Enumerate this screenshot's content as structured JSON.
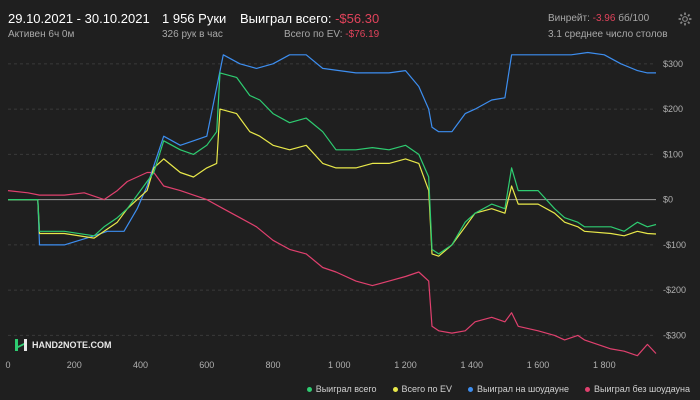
{
  "header": {
    "date_range": "29.10.2021 - 30.10.2021",
    "status": "Активен 6ч 0м",
    "hands": "1 956 Руки",
    "hands_per_hour": "326 рук в час",
    "won_total_label": "Выиграл всего:",
    "won_total_value": "-$56.30",
    "ev_label": "Всего по EV:",
    "ev_value": "-$76.19",
    "winrate_label": "Винрейт:",
    "winrate_value": "-3.96",
    "winrate_unit": "бб/100",
    "avg_tables": "3.1 среднее число столов"
  },
  "logo": {
    "text": "HAND2NOTE.COM"
  },
  "colors": {
    "bg": "#1f1f1f",
    "green": "#2ecc71",
    "yellow": "#e8e84a",
    "blue": "#3d8ef0",
    "pink": "#e0406e"
  },
  "chart_data": {
    "type": "line",
    "xlim": [
      0,
      1956
    ],
    "ylim": [
      -350,
      335
    ],
    "x_ticks": [
      0,
      200,
      400,
      600,
      800,
      1000,
      1200,
      1400,
      1600,
      1800
    ],
    "x_tick_labels": [
      "0",
      "200",
      "400",
      "600",
      "800",
      "1 000",
      "1 200",
      "1 400",
      "1 600",
      "1 800"
    ],
    "y_ticks": [
      -300,
      -200,
      -100,
      0,
      100,
      200,
      300
    ],
    "y_tick_labels": [
      "-$300",
      "-$200",
      "-$100",
      "$0",
      "$100",
      "$200",
      "$300"
    ],
    "grid": "horizontal dashed",
    "legend_position": "bottom-right",
    "series": [
      {
        "name": "Выиграл всего",
        "color": "#2ecc71",
        "points": [
          [
            0,
            0
          ],
          [
            90,
            0
          ],
          [
            95,
            -70
          ],
          [
            170,
            -70
          ],
          [
            260,
            -80
          ],
          [
            290,
            -60
          ],
          [
            330,
            -40
          ],
          [
            360,
            -20
          ],
          [
            390,
            10
          ],
          [
            420,
            40
          ],
          [
            440,
            60
          ],
          [
            470,
            130
          ],
          [
            520,
            110
          ],
          [
            560,
            100
          ],
          [
            600,
            120
          ],
          [
            630,
            150
          ],
          [
            640,
            280
          ],
          [
            690,
            270
          ],
          [
            730,
            230
          ],
          [
            760,
            220
          ],
          [
            800,
            190
          ],
          [
            850,
            170
          ],
          [
            900,
            180
          ],
          [
            950,
            150
          ],
          [
            990,
            110
          ],
          [
            1050,
            110
          ],
          [
            1100,
            115
          ],
          [
            1150,
            110
          ],
          [
            1200,
            120
          ],
          [
            1240,
            100
          ],
          [
            1270,
            50
          ],
          [
            1280,
            -110
          ],
          [
            1300,
            -120
          ],
          [
            1340,
            -100
          ],
          [
            1380,
            -50
          ],
          [
            1410,
            -30
          ],
          [
            1460,
            -10
          ],
          [
            1500,
            -20
          ],
          [
            1520,
            70
          ],
          [
            1540,
            20
          ],
          [
            1600,
            20
          ],
          [
            1650,
            -20
          ],
          [
            1680,
            -40
          ],
          [
            1720,
            -50
          ],
          [
            1740,
            -60
          ],
          [
            1820,
            -60
          ],
          [
            1860,
            -70
          ],
          [
            1900,
            -50
          ],
          [
            1930,
            -60
          ],
          [
            1956,
            -55
          ]
        ]
      },
      {
        "name": "Всего по EV",
        "color": "#e8e84a",
        "points": [
          [
            0,
            0
          ],
          [
            90,
            0
          ],
          [
            95,
            -75
          ],
          [
            170,
            -75
          ],
          [
            260,
            -85
          ],
          [
            290,
            -70
          ],
          [
            330,
            -50
          ],
          [
            360,
            -20
          ],
          [
            390,
            0
          ],
          [
            420,
            20
          ],
          [
            440,
            70
          ],
          [
            470,
            90
          ],
          [
            520,
            60
          ],
          [
            560,
            50
          ],
          [
            600,
            70
          ],
          [
            630,
            80
          ],
          [
            640,
            200
          ],
          [
            690,
            190
          ],
          [
            730,
            150
          ],
          [
            760,
            140
          ],
          [
            800,
            120
          ],
          [
            850,
            110
          ],
          [
            900,
            120
          ],
          [
            950,
            80
          ],
          [
            990,
            70
          ],
          [
            1050,
            70
          ],
          [
            1100,
            80
          ],
          [
            1150,
            80
          ],
          [
            1200,
            90
          ],
          [
            1240,
            80
          ],
          [
            1270,
            20
          ],
          [
            1280,
            -120
          ],
          [
            1300,
            -125
          ],
          [
            1340,
            -100
          ],
          [
            1380,
            -60
          ],
          [
            1410,
            -30
          ],
          [
            1460,
            -20
          ],
          [
            1500,
            -30
          ],
          [
            1520,
            30
          ],
          [
            1540,
            -10
          ],
          [
            1600,
            -10
          ],
          [
            1650,
            -30
          ],
          [
            1680,
            -50
          ],
          [
            1720,
            -60
          ],
          [
            1740,
            -70
          ],
          [
            1820,
            -75
          ],
          [
            1860,
            -80
          ],
          [
            1900,
            -70
          ],
          [
            1930,
            -75
          ],
          [
            1956,
            -76
          ]
        ]
      },
      {
        "name": "Выиграл на шоудауне",
        "color": "#3d8ef0",
        "points": [
          [
            0,
            0
          ],
          [
            90,
            0
          ],
          [
            95,
            -100
          ],
          [
            170,
            -100
          ],
          [
            260,
            -80
          ],
          [
            300,
            -70
          ],
          [
            350,
            -70
          ],
          [
            390,
            -20
          ],
          [
            420,
            30
          ],
          [
            470,
            140
          ],
          [
            520,
            120
          ],
          [
            560,
            130
          ],
          [
            600,
            140
          ],
          [
            650,
            320
          ],
          [
            700,
            300
          ],
          [
            750,
            290
          ],
          [
            800,
            300
          ],
          [
            850,
            320
          ],
          [
            900,
            320
          ],
          [
            950,
            290
          ],
          [
            1000,
            285
          ],
          [
            1050,
            280
          ],
          [
            1100,
            280
          ],
          [
            1150,
            280
          ],
          [
            1200,
            285
          ],
          [
            1240,
            250
          ],
          [
            1270,
            200
          ],
          [
            1280,
            160
          ],
          [
            1300,
            150
          ],
          [
            1340,
            150
          ],
          [
            1380,
            190
          ],
          [
            1410,
            200
          ],
          [
            1460,
            220
          ],
          [
            1500,
            225
          ],
          [
            1520,
            320
          ],
          [
            1560,
            320
          ],
          [
            1600,
            320
          ],
          [
            1650,
            320
          ],
          [
            1700,
            320
          ],
          [
            1750,
            325
          ],
          [
            1800,
            320
          ],
          [
            1850,
            300
          ],
          [
            1900,
            285
          ],
          [
            1930,
            280
          ],
          [
            1956,
            280
          ]
        ]
      },
      {
        "name": "Выиграл без шоудауна",
        "color": "#e0406e",
        "points": [
          [
            0,
            20
          ],
          [
            60,
            15
          ],
          [
            95,
            10
          ],
          [
            170,
            10
          ],
          [
            230,
            15
          ],
          [
            290,
            0
          ],
          [
            330,
            20
          ],
          [
            360,
            40
          ],
          [
            390,
            50
          ],
          [
            420,
            60
          ],
          [
            440,
            60
          ],
          [
            470,
            30
          ],
          [
            520,
            20
          ],
          [
            560,
            10
          ],
          [
            600,
            0
          ],
          [
            650,
            -20
          ],
          [
            700,
            -40
          ],
          [
            750,
            -60
          ],
          [
            800,
            -90
          ],
          [
            850,
            -110
          ],
          [
            900,
            -120
          ],
          [
            950,
            -150
          ],
          [
            990,
            -160
          ],
          [
            1050,
            -180
          ],
          [
            1100,
            -190
          ],
          [
            1150,
            -180
          ],
          [
            1200,
            -170
          ],
          [
            1240,
            -160
          ],
          [
            1270,
            -180
          ],
          [
            1280,
            -280
          ],
          [
            1300,
            -290
          ],
          [
            1340,
            -295
          ],
          [
            1380,
            -290
          ],
          [
            1410,
            -270
          ],
          [
            1460,
            -260
          ],
          [
            1500,
            -270
          ],
          [
            1520,
            -250
          ],
          [
            1540,
            -280
          ],
          [
            1600,
            -290
          ],
          [
            1650,
            -300
          ],
          [
            1680,
            -310
          ],
          [
            1720,
            -300
          ],
          [
            1740,
            -310
          ],
          [
            1820,
            -330
          ],
          [
            1860,
            -335
          ],
          [
            1900,
            -345
          ],
          [
            1930,
            -320
          ],
          [
            1956,
            -340
          ]
        ]
      }
    ]
  }
}
